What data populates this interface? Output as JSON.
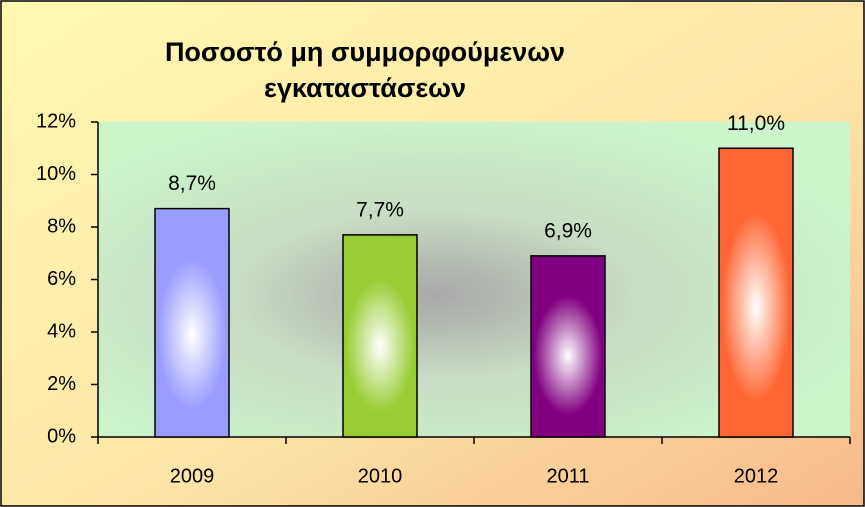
{
  "chart_data": {
    "type": "bar",
    "title": [
      "Ποσοστό μη συμμορφούμενων",
      "εγκαταστάσεων"
    ],
    "categories": [
      "2009",
      "2010",
      "2011",
      "2012"
    ],
    "values": [
      8.7,
      7.7,
      6.9,
      11.0
    ],
    "value_labels": [
      "8,7%",
      "7,7%",
      "6,9%",
      "11,0%"
    ],
    "colors": [
      "#9a9cff",
      "#99cc33",
      "#800080",
      "#ff6633"
    ],
    "ylim": [
      0,
      12
    ],
    "yticks": [
      {
        "value": 0,
        "label": "0%"
      },
      {
        "value": 2,
        "label": "2%"
      },
      {
        "value": 4,
        "label": "4%"
      },
      {
        "value": 6,
        "label": "6%"
      },
      {
        "value": 8,
        "label": "8%"
      },
      {
        "value": 10,
        "label": "10%"
      },
      {
        "value": 12,
        "label": "12%"
      }
    ]
  }
}
